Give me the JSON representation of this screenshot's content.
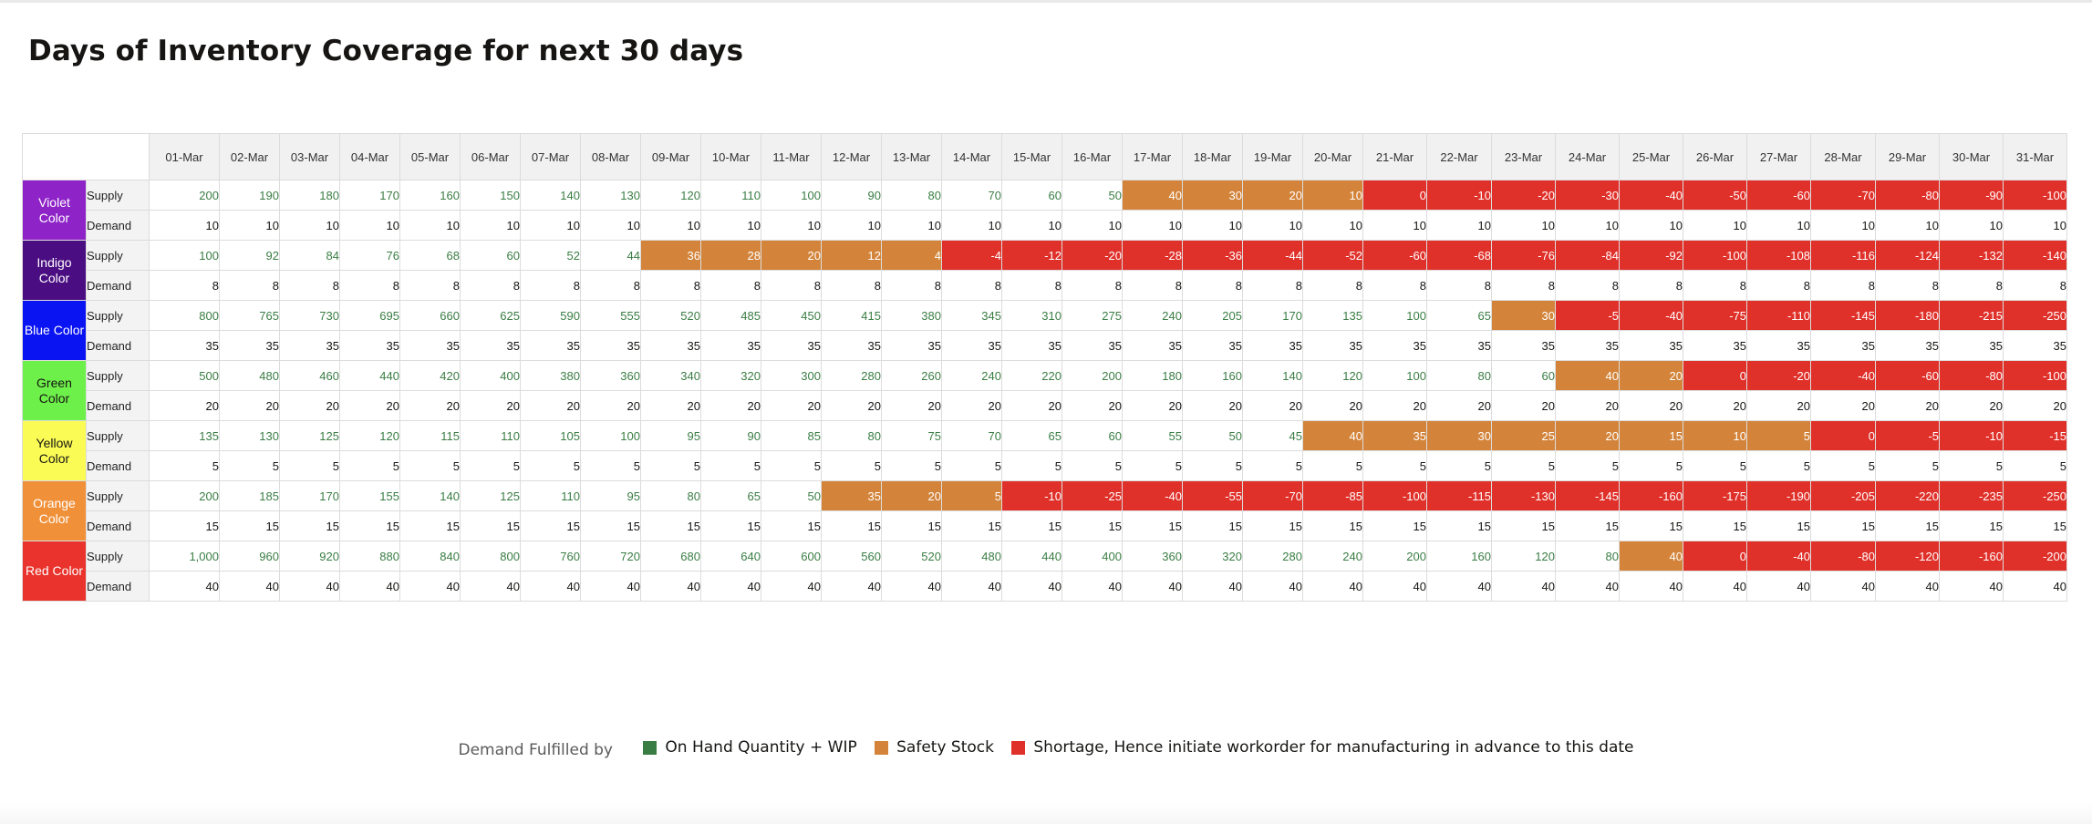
{
  "title": "Days of Inventory Coverage for next 30 days",
  "chart_data": {
    "type": "table",
    "title": "Days of Inventory Coverage for next 30 days",
    "dates": [
      "01-Mar",
      "02-Mar",
      "03-Mar",
      "04-Mar",
      "05-Mar",
      "06-Mar",
      "07-Mar",
      "08-Mar",
      "09-Mar",
      "10-Mar",
      "11-Mar",
      "12-Mar",
      "13-Mar",
      "14-Mar",
      "15-Mar",
      "16-Mar",
      "17-Mar",
      "18-Mar",
      "19-Mar",
      "20-Mar",
      "21-Mar",
      "22-Mar",
      "23-Mar",
      "24-Mar",
      "25-Mar",
      "26-Mar",
      "27-Mar",
      "28-Mar",
      "29-Mar",
      "30-Mar",
      "31-Mar"
    ],
    "row_labels": {
      "supply": "Supply",
      "demand": "Demand"
    },
    "status_colors": {
      "onhand": "#3a7d44",
      "safety": "#d3843a",
      "shortage": "#e0302a"
    },
    "items": [
      {
        "name": "Violet Color",
        "color": "#8e24c8",
        "supply": [
          "200",
          "190",
          "180",
          "170",
          "160",
          "150",
          "140",
          "130",
          "120",
          "110",
          "100",
          "90",
          "80",
          "70",
          "60",
          "50",
          "40",
          "30",
          "20",
          "10",
          "0",
          "-10",
          "-20",
          "-30",
          "-40",
          "-50",
          "-60",
          "-70",
          "-80",
          "-90",
          "-100"
        ],
        "demand": [
          "10",
          "10",
          "10",
          "10",
          "10",
          "10",
          "10",
          "10",
          "10",
          "10",
          "10",
          "10",
          "10",
          "10",
          "10",
          "10",
          "10",
          "10",
          "10",
          "10",
          "10",
          "10",
          "10",
          "10",
          "10",
          "10",
          "10",
          "10",
          "10",
          "10",
          "10"
        ],
        "status": [
          "g",
          "g",
          "g",
          "g",
          "g",
          "g",
          "g",
          "g",
          "g",
          "g",
          "g",
          "g",
          "g",
          "g",
          "g",
          "g",
          "s",
          "s",
          "s",
          "s",
          "r",
          "r",
          "r",
          "r",
          "r",
          "r",
          "r",
          "r",
          "r",
          "r",
          "r"
        ]
      },
      {
        "name": "Indigo Color",
        "color": "#4a0e82",
        "supply": [
          "100",
          "92",
          "84",
          "76",
          "68",
          "60",
          "52",
          "44",
          "36",
          "28",
          "20",
          "12",
          "4",
          "-4",
          "-12",
          "-20",
          "-28",
          "-36",
          "-44",
          "-52",
          "-60",
          "-68",
          "-76",
          "-84",
          "-92",
          "-100",
          "-108",
          "-116",
          "-124",
          "-132",
          "-140"
        ],
        "demand": [
          "8",
          "8",
          "8",
          "8",
          "8",
          "8",
          "8",
          "8",
          "8",
          "8",
          "8",
          "8",
          "8",
          "8",
          "8",
          "8",
          "8",
          "8",
          "8",
          "8",
          "8",
          "8",
          "8",
          "8",
          "8",
          "8",
          "8",
          "8",
          "8",
          "8",
          "8"
        ],
        "status": [
          "g",
          "g",
          "g",
          "g",
          "g",
          "g",
          "g",
          "g",
          "s",
          "s",
          "s",
          "s",
          "s",
          "r",
          "r",
          "r",
          "r",
          "r",
          "r",
          "r",
          "r",
          "r",
          "r",
          "r",
          "r",
          "r",
          "r",
          "r",
          "r",
          "r",
          "r"
        ]
      },
      {
        "name": "Blue Color",
        "color": "#0a14f2",
        "supply": [
          "800",
          "765",
          "730",
          "695",
          "660",
          "625",
          "590",
          "555",
          "520",
          "485",
          "450",
          "415",
          "380",
          "345",
          "310",
          "275",
          "240",
          "205",
          "170",
          "135",
          "100",
          "65",
          "30",
          "-5",
          "-40",
          "-75",
          "-110",
          "-145",
          "-180",
          "-215",
          "-250"
        ],
        "demand": [
          "35",
          "35",
          "35",
          "35",
          "35",
          "35",
          "35",
          "35",
          "35",
          "35",
          "35",
          "35",
          "35",
          "35",
          "35",
          "35",
          "35",
          "35",
          "35",
          "35",
          "35",
          "35",
          "35",
          "35",
          "35",
          "35",
          "35",
          "35",
          "35",
          "35",
          "35"
        ],
        "status": [
          "g",
          "g",
          "g",
          "g",
          "g",
          "g",
          "g",
          "g",
          "g",
          "g",
          "g",
          "g",
          "g",
          "g",
          "g",
          "g",
          "g",
          "g",
          "g",
          "g",
          "g",
          "g",
          "s",
          "r",
          "r",
          "r",
          "r",
          "r",
          "r",
          "r",
          "r"
        ]
      },
      {
        "name": "Green Color",
        "color": "#6ef04a",
        "supply": [
          "500",
          "480",
          "460",
          "440",
          "420",
          "400",
          "380",
          "360",
          "340",
          "320",
          "300",
          "280",
          "260",
          "240",
          "220",
          "200",
          "180",
          "160",
          "140",
          "120",
          "100",
          "80",
          "60",
          "40",
          "20",
          "0",
          "-20",
          "-40",
          "-60",
          "-80",
          "-100"
        ],
        "demand": [
          "20",
          "20",
          "20",
          "20",
          "20",
          "20",
          "20",
          "20",
          "20",
          "20",
          "20",
          "20",
          "20",
          "20",
          "20",
          "20",
          "20",
          "20",
          "20",
          "20",
          "20",
          "20",
          "20",
          "20",
          "20",
          "20",
          "20",
          "20",
          "20",
          "20",
          "20"
        ],
        "status": [
          "g",
          "g",
          "g",
          "g",
          "g",
          "g",
          "g",
          "g",
          "g",
          "g",
          "g",
          "g",
          "g",
          "g",
          "g",
          "g",
          "g",
          "g",
          "g",
          "g",
          "g",
          "g",
          "g",
          "s",
          "s",
          "r",
          "r",
          "r",
          "r",
          "r",
          "r"
        ]
      },
      {
        "name": "Yellow Color",
        "color": "#fbfb55",
        "supply": [
          "135",
          "130",
          "125",
          "120",
          "115",
          "110",
          "105",
          "100",
          "95",
          "90",
          "85",
          "80",
          "75",
          "70",
          "65",
          "60",
          "55",
          "50",
          "45",
          "40",
          "35",
          "30",
          "25",
          "20",
          "15",
          "10",
          "5",
          "0",
          "-5",
          "-10",
          "-15"
        ],
        "demand": [
          "5",
          "5",
          "5",
          "5",
          "5",
          "5",
          "5",
          "5",
          "5",
          "5",
          "5",
          "5",
          "5",
          "5",
          "5",
          "5",
          "5",
          "5",
          "5",
          "5",
          "5",
          "5",
          "5",
          "5",
          "5",
          "5",
          "5",
          "5",
          "5",
          "5",
          "5"
        ],
        "status": [
          "g",
          "g",
          "g",
          "g",
          "g",
          "g",
          "g",
          "g",
          "g",
          "g",
          "g",
          "g",
          "g",
          "g",
          "g",
          "g",
          "g",
          "g",
          "g",
          "s",
          "s",
          "s",
          "s",
          "s",
          "s",
          "s",
          "s",
          "r",
          "r",
          "r",
          "r"
        ]
      },
      {
        "name": "Orange Color",
        "color": "#f0913a",
        "supply": [
          "200",
          "185",
          "170",
          "155",
          "140",
          "125",
          "110",
          "95",
          "80",
          "65",
          "50",
          "35",
          "20",
          "5",
          "-10",
          "-25",
          "-40",
          "-55",
          "-70",
          "-85",
          "-100",
          "-115",
          "-130",
          "-145",
          "-160",
          "-175",
          "-190",
          "-205",
          "-220",
          "-235",
          "-250"
        ],
        "demand": [
          "15",
          "15",
          "15",
          "15",
          "15",
          "15",
          "15",
          "15",
          "15",
          "15",
          "15",
          "15",
          "15",
          "15",
          "15",
          "15",
          "15",
          "15",
          "15",
          "15",
          "15",
          "15",
          "15",
          "15",
          "15",
          "15",
          "15",
          "15",
          "15",
          "15",
          "15"
        ],
        "status": [
          "g",
          "g",
          "g",
          "g",
          "g",
          "g",
          "g",
          "g",
          "g",
          "g",
          "g",
          "s",
          "s",
          "s",
          "r",
          "r",
          "r",
          "r",
          "r",
          "r",
          "r",
          "r",
          "r",
          "r",
          "r",
          "r",
          "r",
          "r",
          "r",
          "r",
          "r"
        ]
      },
      {
        "name": "Red Color",
        "color": "#e9332c",
        "supply": [
          "1,000",
          "960",
          "920",
          "880",
          "840",
          "800",
          "760",
          "720",
          "680",
          "640",
          "600",
          "560",
          "520",
          "480",
          "440",
          "400",
          "360",
          "320",
          "280",
          "240",
          "200",
          "160",
          "120",
          "80",
          "40",
          "0",
          "-40",
          "-80",
          "-120",
          "-160",
          "-200"
        ],
        "demand": [
          "40",
          "40",
          "40",
          "40",
          "40",
          "40",
          "40",
          "40",
          "40",
          "40",
          "40",
          "40",
          "40",
          "40",
          "40",
          "40",
          "40",
          "40",
          "40",
          "40",
          "40",
          "40",
          "40",
          "40",
          "40",
          "40",
          "40",
          "40",
          "40",
          "40",
          "40"
        ],
        "status": [
          "g",
          "g",
          "g",
          "g",
          "g",
          "g",
          "g",
          "g",
          "g",
          "g",
          "g",
          "g",
          "g",
          "g",
          "g",
          "g",
          "g",
          "g",
          "g",
          "g",
          "g",
          "g",
          "g",
          "g",
          "s",
          "r",
          "r",
          "r",
          "r",
          "r",
          "r"
        ]
      }
    ],
    "legend": {
      "title": "Demand Fulfilled by",
      "items": [
        {
          "label": "On Hand Quantity + WIP",
          "color": "#3a7d44"
        },
        {
          "label": "Safety Stock",
          "color": "#d3843a"
        },
        {
          "label": "Shortage, Hence initiate workorder for manufacturing in advance to this date",
          "color": "#e0302a"
        }
      ]
    }
  }
}
